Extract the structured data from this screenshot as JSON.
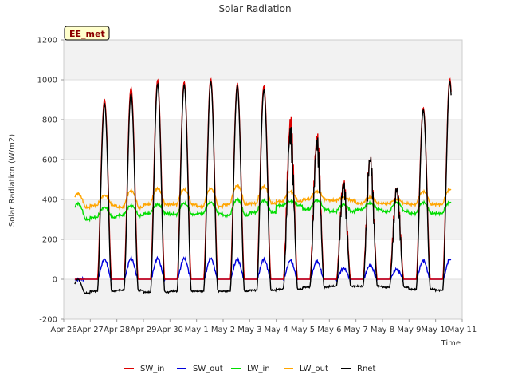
{
  "chart_data": {
    "type": "line",
    "title": "Solar Radiation",
    "xlabel": "Time",
    "ylabel": "Solar Radiation (W/m2)",
    "badge": "EE_met",
    "ylim": [
      -200,
      1200
    ],
    "yticks": [
      -200,
      0,
      200,
      400,
      600,
      800,
      1000,
      1200
    ],
    "xlim": [
      0,
      15
    ],
    "xtick_labels": [
      "Apr 26",
      "Apr 27",
      "Apr 28",
      "Apr 29",
      "Apr 30",
      "May 1",
      "May 2",
      "May 3",
      "May 4",
      "May 5",
      "May 6",
      "May 7",
      "May 8",
      "May 9",
      "May 10",
      "May 11"
    ],
    "grid": true,
    "legend_position": "bottom",
    "days": [
      "Apr 26",
      "Apr 27",
      "Apr 28",
      "Apr 29",
      "Apr 30",
      "May 1",
      "May 2",
      "May 3",
      "May 4",
      "May 5",
      "May 6",
      "May 7",
      "May 8",
      "May 9",
      "May 10"
    ],
    "series": [
      {
        "name": "SW_in",
        "color": "#dd0000",
        "peak": [
          0,
          900,
          960,
          1000,
          990,
          1005,
          980,
          970,
          840,
          760,
          520,
          650,
          490,
          860,
          1005
        ]
      },
      {
        "name": "SW_out",
        "color": "#0000dd",
        "peak": [
          0,
          100,
          105,
          105,
          105,
          105,
          100,
          100,
          95,
          90,
          55,
          70,
          50,
          95,
          100
        ]
      },
      {
        "name": "LW_in",
        "color": "#00dd00",
        "night": [
          300,
          310,
          320,
          330,
          325,
          330,
          320,
          335,
          370,
          350,
          340,
          350,
          340,
          330,
          330
        ],
        "day": [
          380,
          360,
          370,
          375,
          380,
          385,
          400,
          395,
          390,
          395,
          375,
          380,
          385,
          385,
          385
        ]
      },
      {
        "name": "LW_out",
        "color": "#ffa500",
        "night": [
          360,
          370,
          360,
          375,
          375,
          365,
          375,
          380,
          390,
          400,
          395,
          380,
          380,
          375,
          375
        ],
        "day": [
          430,
          420,
          445,
          455,
          450,
          455,
          470,
          465,
          440,
          440,
          410,
          410,
          400,
          440,
          450
        ]
      },
      {
        "name": "Rnet",
        "color": "#000000",
        "night": [
          -70,
          -60,
          -55,
          -65,
          -60,
          -60,
          -60,
          -55,
          -50,
          -40,
          -35,
          -35,
          -40,
          -50,
          -55
        ],
        "peak": [
          0,
          880,
          930,
          980,
          975,
          990,
          970,
          950,
          790,
          740,
          510,
          650,
          490,
          850,
          990
        ]
      }
    ]
  }
}
